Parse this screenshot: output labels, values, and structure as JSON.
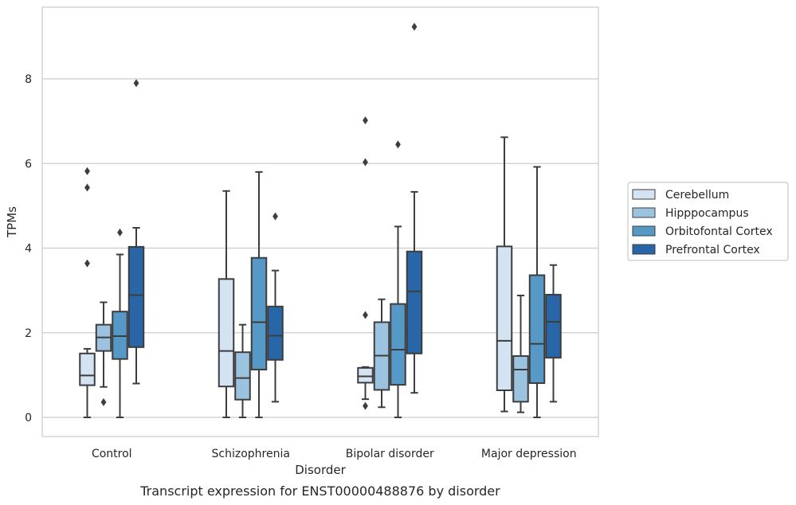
{
  "chart_data": {
    "type": "box",
    "xlabel": "Disorder",
    "ylabel": "TPMs",
    "caption": "Transcript expression for ENST00000488876 by disorder",
    "ylim": [
      -0.45,
      9.7
    ],
    "yticks": [
      0,
      2,
      4,
      6,
      8
    ],
    "ytick_labels": [
      "0",
      "2",
      "4",
      "6",
      "8"
    ],
    "grid": "horizontal",
    "legend_position": "right",
    "categories": [
      "Control",
      "Schizophrenia",
      "Bipolar disorder",
      "Major depression"
    ],
    "series": [
      {
        "name": "Cerebellum",
        "color": "#d4e3f1",
        "boxes": [
          {
            "whisker_low": 0.0,
            "q1": 0.76,
            "median": 0.99,
            "q3": 1.51,
            "whisker_high": 1.62,
            "outliers": [
              3.64,
              5.43,
              5.82
            ]
          },
          {
            "whisker_low": 0.0,
            "q1": 0.73,
            "median": 1.57,
            "q3": 3.27,
            "whisker_high": 5.35,
            "outliers": []
          },
          {
            "whisker_low": 0.43,
            "q1": 0.82,
            "median": 0.97,
            "q3": 1.17,
            "whisker_high": 1.19,
            "outliers": [
              0.27,
              2.42,
              6.03,
              7.02
            ]
          },
          {
            "whisker_low": 0.14,
            "q1": 0.64,
            "median": 1.81,
            "q3": 4.04,
            "whisker_high": 6.62,
            "outliers": []
          }
        ]
      },
      {
        "name": "Hipppocampus",
        "color": "#9bc3df",
        "boxes": [
          {
            "whisker_low": 0.72,
            "q1": 1.57,
            "median": 1.89,
            "q3": 2.19,
            "whisker_high": 2.72,
            "outliers": [
              0.36
            ]
          },
          {
            "whisker_low": 0.0,
            "q1": 0.42,
            "median": 0.93,
            "q3": 1.54,
            "whisker_high": 2.19,
            "outliers": []
          },
          {
            "whisker_low": 0.24,
            "q1": 0.65,
            "median": 1.46,
            "q3": 2.25,
            "whisker_high": 2.79,
            "outliers": []
          },
          {
            "whisker_low": 0.12,
            "q1": 0.37,
            "median": 1.13,
            "q3": 1.45,
            "whisker_high": 2.88,
            "outliers": []
          }
        ]
      },
      {
        "name": "Orbitofontal Cortex",
        "color": "#5698c6",
        "boxes": [
          {
            "whisker_low": 0.0,
            "q1": 1.38,
            "median": 1.92,
            "q3": 2.5,
            "whisker_high": 3.85,
            "outliers": [
              4.37
            ]
          },
          {
            "whisker_low": 0.0,
            "q1": 1.13,
            "median": 2.25,
            "q3": 3.77,
            "whisker_high": 5.8,
            "outliers": []
          },
          {
            "whisker_low": 0.0,
            "q1": 0.77,
            "median": 1.6,
            "q3": 2.68,
            "whisker_high": 4.51,
            "outliers": [
              6.45
            ]
          },
          {
            "whisker_low": 0.0,
            "q1": 0.81,
            "median": 1.74,
            "q3": 3.36,
            "whisker_high": 5.92,
            "outliers": []
          }
        ]
      },
      {
        "name": "Prefrontal Cortex",
        "color": "#2966a7",
        "boxes": [
          {
            "whisker_low": 0.8,
            "q1": 1.66,
            "median": 2.89,
            "q3": 4.03,
            "whisker_high": 4.48,
            "outliers": [
              7.9
            ]
          },
          {
            "whisker_low": 0.37,
            "q1": 1.36,
            "median": 1.93,
            "q3": 2.62,
            "whisker_high": 3.47,
            "outliers": [
              4.75
            ]
          },
          {
            "whisker_low": 0.58,
            "q1": 1.51,
            "median": 2.98,
            "q3": 3.92,
            "whisker_high": 5.33,
            "outliers": [
              9.23
            ]
          },
          {
            "whisker_low": 0.37,
            "q1": 1.41,
            "median": 2.26,
            "q3": 2.9,
            "whisker_high": 3.6,
            "outliers": []
          }
        ]
      }
    ]
  }
}
